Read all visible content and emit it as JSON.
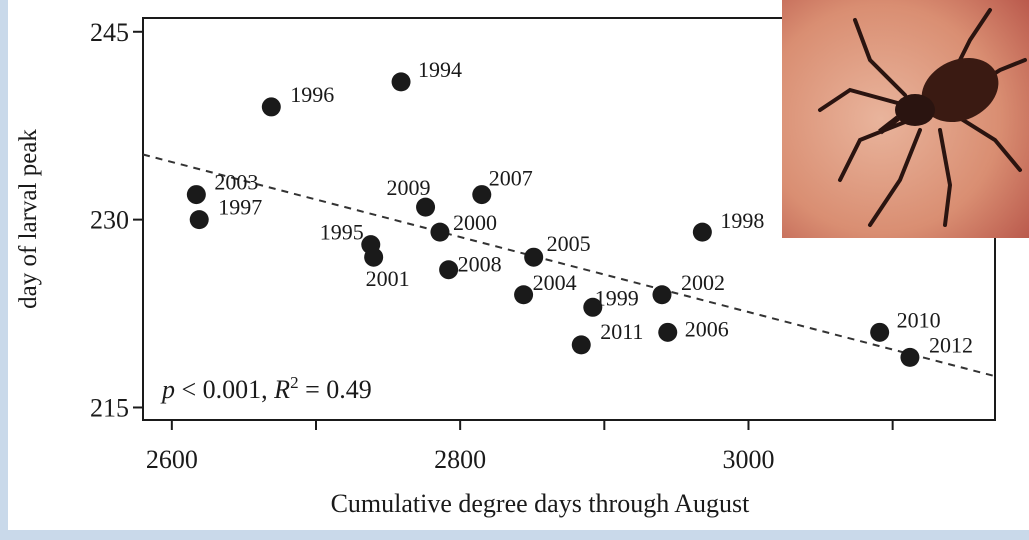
{
  "chart_data": {
    "type": "scatter",
    "x_label": "Cumulative degree days through August",
    "y_label": "day of larval peak",
    "annotation_parts": [
      "p",
      " < 0.001, ",
      "R",
      "2",
      " = 0.49"
    ],
    "series": [
      {
        "color": "#1a1a1a",
        "labels": [
          "1994",
          "1996",
          "2003",
          "1997",
          "2009",
          "2007",
          "2000",
          "1995",
          "2001",
          "2008",
          "2005",
          "2004",
          "1999",
          "2011",
          "2002",
          "2006",
          "1998",
          "2010",
          "2012"
        ],
        "x": [
          2759,
          2669,
          2617,
          2619,
          2776,
          2815,
          2786,
          2738,
          2740,
          2792,
          2851,
          2844,
          2892,
          2884,
          2940,
          2944,
          2968,
          3091,
          3112
        ],
        "values": [
          241,
          239,
          232,
          230,
          231,
          232,
          229,
          228,
          227,
          226,
          227,
          224,
          223,
          220,
          224,
          221,
          229,
          221,
          219
        ]
      }
    ],
    "trendline": {
      "x": [
        2580,
        3171
      ],
      "y": [
        235.2,
        217.5
      ]
    },
    "xlim": [
      2580,
      3171
    ],
    "xticks": [
      2600,
      2800,
      3000
    ],
    "xminorticks": [
      2700,
      2900,
      3100
    ],
    "ylim": [
      214,
      246.1
    ],
    "yticks": [
      215,
      230,
      245
    ]
  }
}
